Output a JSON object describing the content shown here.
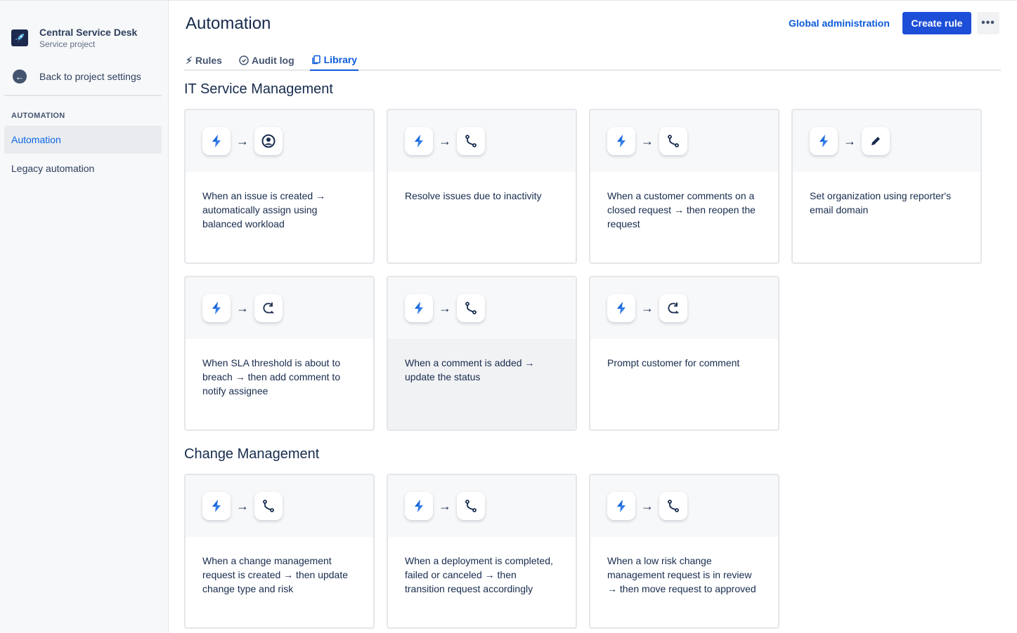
{
  "sidebar": {
    "project_name": "Central Service Desk",
    "project_type": "Service project",
    "back_label": "Back to project settings",
    "section": "AUTOMATION",
    "items": [
      {
        "label": "Automation",
        "active": true
      },
      {
        "label": "Legacy automation",
        "active": false
      }
    ]
  },
  "header": {
    "title": "Automation",
    "global_admin": "Global administration",
    "create_rule": "Create rule",
    "more": "•••"
  },
  "tabs": [
    {
      "label": "Rules",
      "icon": "bolt-icon"
    },
    {
      "label": "Audit log",
      "icon": "check-circle-icon"
    },
    {
      "label": "Library",
      "icon": "copy-icon",
      "active": true
    }
  ],
  "accent": "#0c5bd9",
  "sections": [
    {
      "title": "IT Service Management",
      "cards": [
        {
          "icon": "person",
          "text": "When an issue is created → automatically assign using balanced workload"
        },
        {
          "icon": "branch",
          "text": "Resolve issues due to inactivity"
        },
        {
          "icon": "branch",
          "text": "When a customer comments on a closed request → then reopen the request"
        },
        {
          "icon": "pencil",
          "text": "Set organization using reporter's email domain"
        },
        {
          "icon": "comment",
          "text": "When SLA threshold is about to breach → then add comment to notify assignee"
        },
        {
          "icon": "branch",
          "text": "When a comment is added → update the status"
        },
        {
          "icon": "comment",
          "text": "Prompt customer for comment"
        }
      ]
    },
    {
      "title": "Change Management",
      "cards": [
        {
          "icon": "branch",
          "text": "When a change management request is created → then update change type and risk"
        },
        {
          "icon": "branch",
          "text": "When a deployment is completed, failed or canceled → then transition request accordingly"
        },
        {
          "icon": "branch",
          "text": "When a low risk change management request is in review → then move request to approved"
        }
      ]
    }
  ]
}
